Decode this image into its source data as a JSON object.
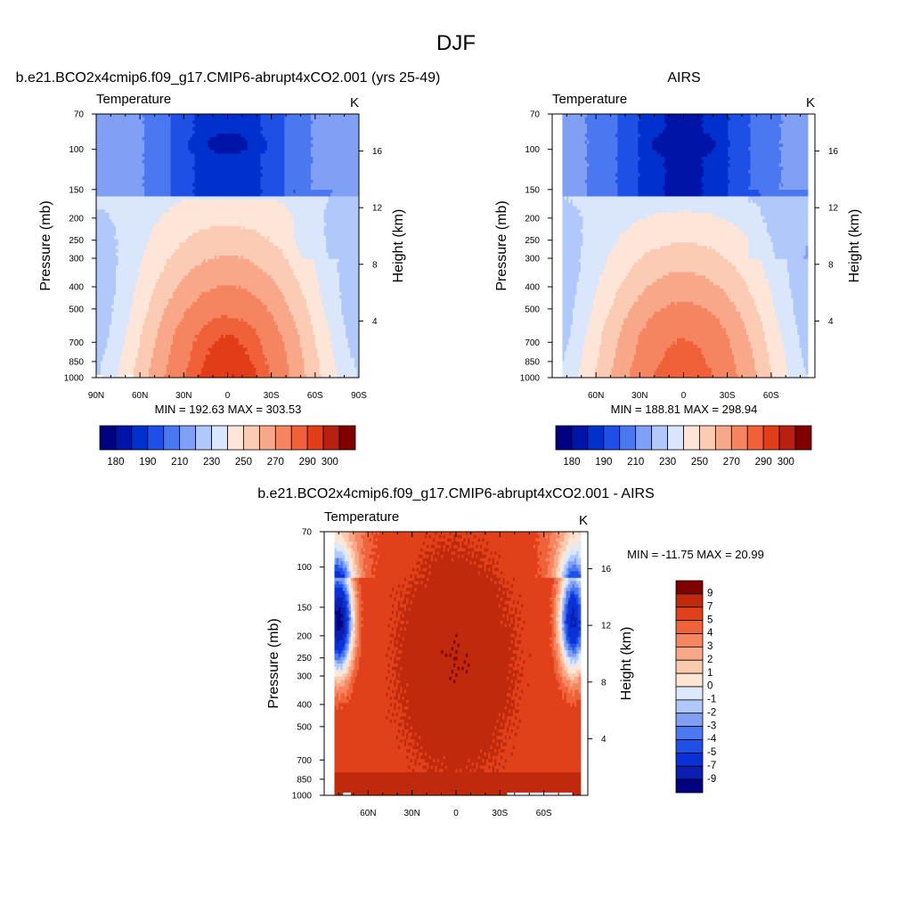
{
  "figure": {
    "title": "DJF"
  },
  "colors": {
    "abs": [
      "#000080",
      "#0015a8",
      "#0030cd",
      "#1e50e6",
      "#4b78f0",
      "#80a0f5",
      "#b0c8fa",
      "#dae6fb",
      "#fde6d8",
      "#fbcbb4",
      "#f8a888",
      "#f58560",
      "#f06039",
      "#e03d18",
      "#b82010",
      "#800000"
    ],
    "diff": [
      "#000080",
      "#0a1fb0",
      "#0a30d8",
      "#1e50e8",
      "#4c78f0",
      "#80a0f5",
      "#b0c8fb",
      "#dce8fc",
      "#fde6d4",
      "#fbcbb0",
      "#f8a886",
      "#f58660",
      "#f0623a",
      "#e0401a",
      "#c02a0c",
      "#800000"
    ]
  },
  "chart_data": [
    {
      "id": "model",
      "type": "contour",
      "title": "b.e21.BCO2x4cmip6.f09_g17.CMIP6-abrupt4xCO2.001 (yrs 25-49)",
      "left_string": "Temperature",
      "right_string": "K",
      "ylabel": "Pressure (mb)",
      "y2label": "Height (km)",
      "pressure_ticks": [
        70,
        100,
        150,
        200,
        250,
        300,
        400,
        500,
        700,
        850,
        1000
      ],
      "height_ticks": [
        4,
        8,
        12,
        16
      ],
      "xlim": [
        90,
        -90
      ],
      "x_ticks": [
        "90N",
        "60N",
        "30N",
        "0",
        "30S",
        "60S",
        "90S"
      ],
      "x_tick_values": [
        90,
        60,
        30,
        0,
        -30,
        -60,
        -90
      ],
      "stats": "MIN = 192.63  MAX = 303.53",
      "min": 192.63,
      "max": 303.53,
      "levels": [
        180,
        190,
        200,
        210,
        220,
        230,
        240,
        250,
        260,
        270,
        280,
        290,
        295,
        300,
        305
      ],
      "colorbar_labels": [
        "180",
        "190",
        "210",
        "230",
        "250",
        "270",
        "290",
        "300"
      ]
    },
    {
      "id": "obs",
      "type": "contour",
      "title": "AIRS",
      "left_string": "Temperature",
      "right_string": "K",
      "ylabel": "Pressure (mb)",
      "y2label": "Height (km)",
      "pressure_ticks": [
        70,
        100,
        150,
        200,
        250,
        300,
        400,
        500,
        700,
        850,
        1000
      ],
      "height_ticks": [
        4,
        8,
        12,
        16
      ],
      "xlim": [
        90,
        -90
      ],
      "data_lat_range": [
        83,
        -85
      ],
      "x_ticks": [
        "60N",
        "30N",
        "0",
        "30S",
        "60S"
      ],
      "x_tick_values": [
        60,
        30,
        0,
        -30,
        -60
      ],
      "stats": "MIN = 188.81  MAX = 298.94",
      "min": 188.81,
      "max": 298.94,
      "levels": [
        180,
        190,
        200,
        210,
        220,
        230,
        240,
        250,
        260,
        270,
        280,
        290,
        295,
        300,
        305
      ],
      "colorbar_labels": [
        "180",
        "190",
        "210",
        "230",
        "250",
        "270",
        "290",
        "300"
      ]
    },
    {
      "id": "diff",
      "type": "contour",
      "title": "b.e21.BCO2x4cmip6.f09_g17.CMIP6-abrupt4xCO2.001 - AIRS",
      "left_string": "Temperature",
      "right_string": "K",
      "ylabel": "Pressure (mb)",
      "y2label": "Height (km)",
      "pressure_ticks": [
        70,
        100,
        150,
        200,
        250,
        300,
        400,
        500,
        700,
        850,
        1000
      ],
      "height_ticks": [
        4,
        8,
        12,
        16
      ],
      "xlim": [
        90,
        -90
      ],
      "data_lat_range": [
        83,
        -85
      ],
      "x_ticks": [
        "60N",
        "30N",
        "0",
        "30S",
        "60S"
      ],
      "x_tick_values": [
        60,
        30,
        0,
        -30,
        -60
      ],
      "stats": "MIN = -11.75  MAX =  20.99",
      "min": -11.75,
      "max": 20.99,
      "levels": [
        -9,
        -7,
        -5,
        -4,
        -3,
        -2,
        -1,
        0,
        1,
        2,
        3,
        4,
        5,
        7,
        9
      ],
      "colorbar_labels": [
        "9",
        "7",
        "5",
        "4",
        "3",
        "2",
        "1",
        "0",
        "-1",
        "-2",
        "-3",
        "-4",
        "-5",
        "-7",
        "-9"
      ]
    }
  ]
}
